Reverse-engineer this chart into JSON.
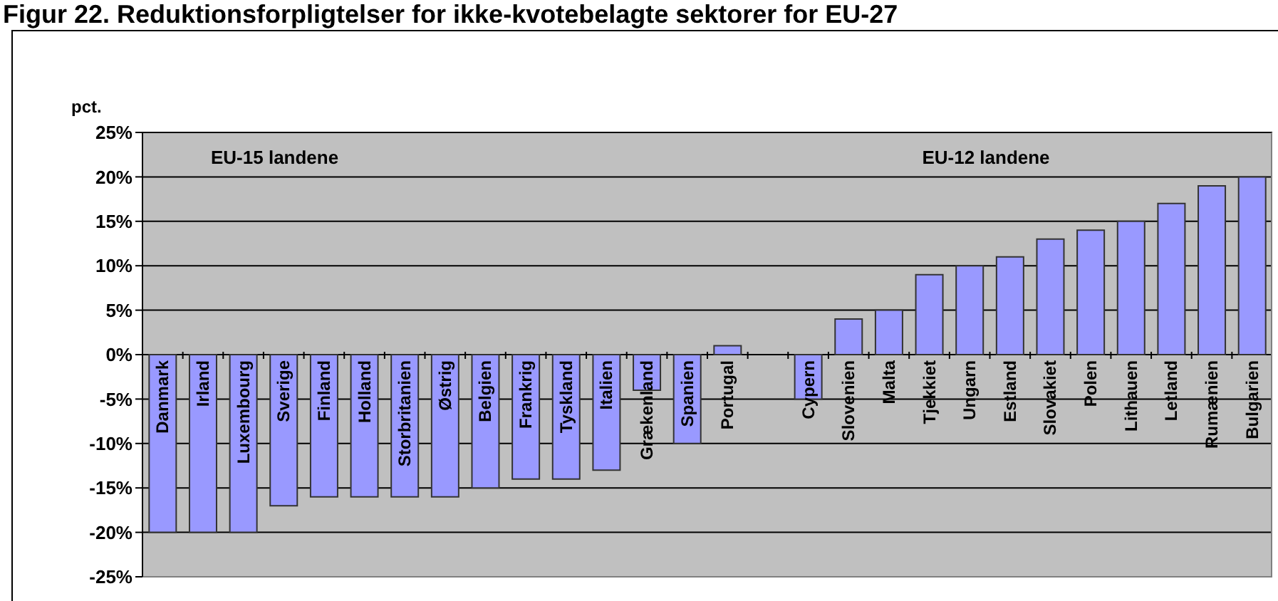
{
  "chart_data": {
    "type": "bar",
    "title": "Figur 22. Reduktionsforpligtelser for ikke-kvotebelagte sektorer for EU-27",
    "ylabel": "pct.",
    "annotations": [
      "EU-15 landene",
      "EU-12 landene"
    ],
    "categories": [
      "Danmark",
      "Irland",
      "Luxembourg",
      "Sverige",
      "Finland",
      "Holland",
      "Storbritanien",
      "Østrig",
      "Belgien",
      "Frankrig",
      "Tyskland",
      "Italien",
      "Grækenland",
      "Spanien",
      "Portugal",
      null,
      "Cypern",
      "Slovenien",
      "Malta",
      "Tjekkiet",
      "Ungarn",
      "Estland",
      "Slovakiet",
      "Polen",
      "Lithauen",
      "Letland",
      "Rumænien",
      "Bulgarien"
    ],
    "values": [
      -20,
      -20,
      -20,
      -17,
      -16,
      -16,
      -16,
      -16,
      -15,
      -14,
      -14,
      -13,
      -4,
      -10,
      1,
      null,
      -5,
      4,
      5,
      9,
      10,
      11,
      13,
      14,
      15,
      17,
      19,
      20
    ],
    "color": "#9999ff",
    "ylim": [
      -25,
      25
    ],
    "yticks": [
      {
        "value": 25,
        "label": "25%"
      },
      {
        "value": 20,
        "label": "20%"
      },
      {
        "value": 15,
        "label": "15%"
      },
      {
        "value": 10,
        "label": "10%"
      },
      {
        "value": 5,
        "label": "5%"
      },
      {
        "value": 0,
        "label": "0%"
      },
      {
        "value": -5,
        "label": "-5%"
      },
      {
        "value": -10,
        "label": "-10%"
      },
      {
        "value": -15,
        "label": "-15%"
      },
      {
        "value": -20,
        "label": "-20%"
      },
      {
        "value": -25,
        "label": "-25%"
      }
    ],
    "grid": "y"
  }
}
